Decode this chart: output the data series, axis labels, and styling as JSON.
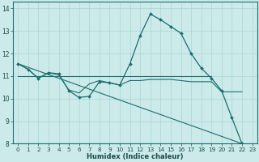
{
  "xlabel": "Humidex (Indice chaleur)",
  "bg_color": "#cceaea",
  "grid_color": "#aad4d4",
  "line_color": "#1a6e6e",
  "line1_x": [
    0,
    1,
    2,
    3,
    4,
    5,
    6,
    7,
    8,
    9,
    10,
    11,
    12,
    13,
    14,
    15,
    16,
    17,
    18,
    19,
    20,
    21,
    22
  ],
  "line1_y": [
    11.55,
    11.3,
    10.9,
    11.15,
    11.1,
    10.35,
    10.05,
    10.1,
    10.75,
    10.7,
    10.6,
    11.55,
    12.8,
    13.75,
    13.5,
    13.2,
    12.9,
    12.0,
    11.35,
    10.9,
    10.35,
    9.15,
    8.0
  ],
  "line2_x": [
    0,
    19
  ],
  "line2_y": [
    11.0,
    11.0
  ],
  "line3_x": [
    0,
    22
  ],
  "line3_y": [
    11.55,
    8.0
  ],
  "line4_x": [
    0,
    1,
    2,
    3,
    4,
    5,
    6,
    7,
    8,
    9,
    10,
    11,
    12,
    13,
    14,
    15,
    16,
    17,
    18,
    19,
    20,
    21,
    22
  ],
  "line4_y": [
    11.55,
    11.3,
    10.9,
    11.15,
    11.05,
    10.38,
    10.25,
    10.65,
    10.8,
    10.7,
    10.6,
    10.8,
    10.8,
    10.85,
    10.85,
    10.85,
    10.8,
    10.75,
    10.75,
    10.75,
    10.3,
    10.3,
    10.3
  ],
  "ylim": [
    8,
    14.3
  ],
  "yticks": [
    8,
    9,
    10,
    11,
    12,
    13,
    14
  ],
  "xticks": [
    0,
    1,
    2,
    3,
    4,
    5,
    6,
    7,
    8,
    9,
    10,
    11,
    12,
    13,
    14,
    15,
    16,
    17,
    18,
    19,
    20,
    21,
    22,
    23
  ]
}
